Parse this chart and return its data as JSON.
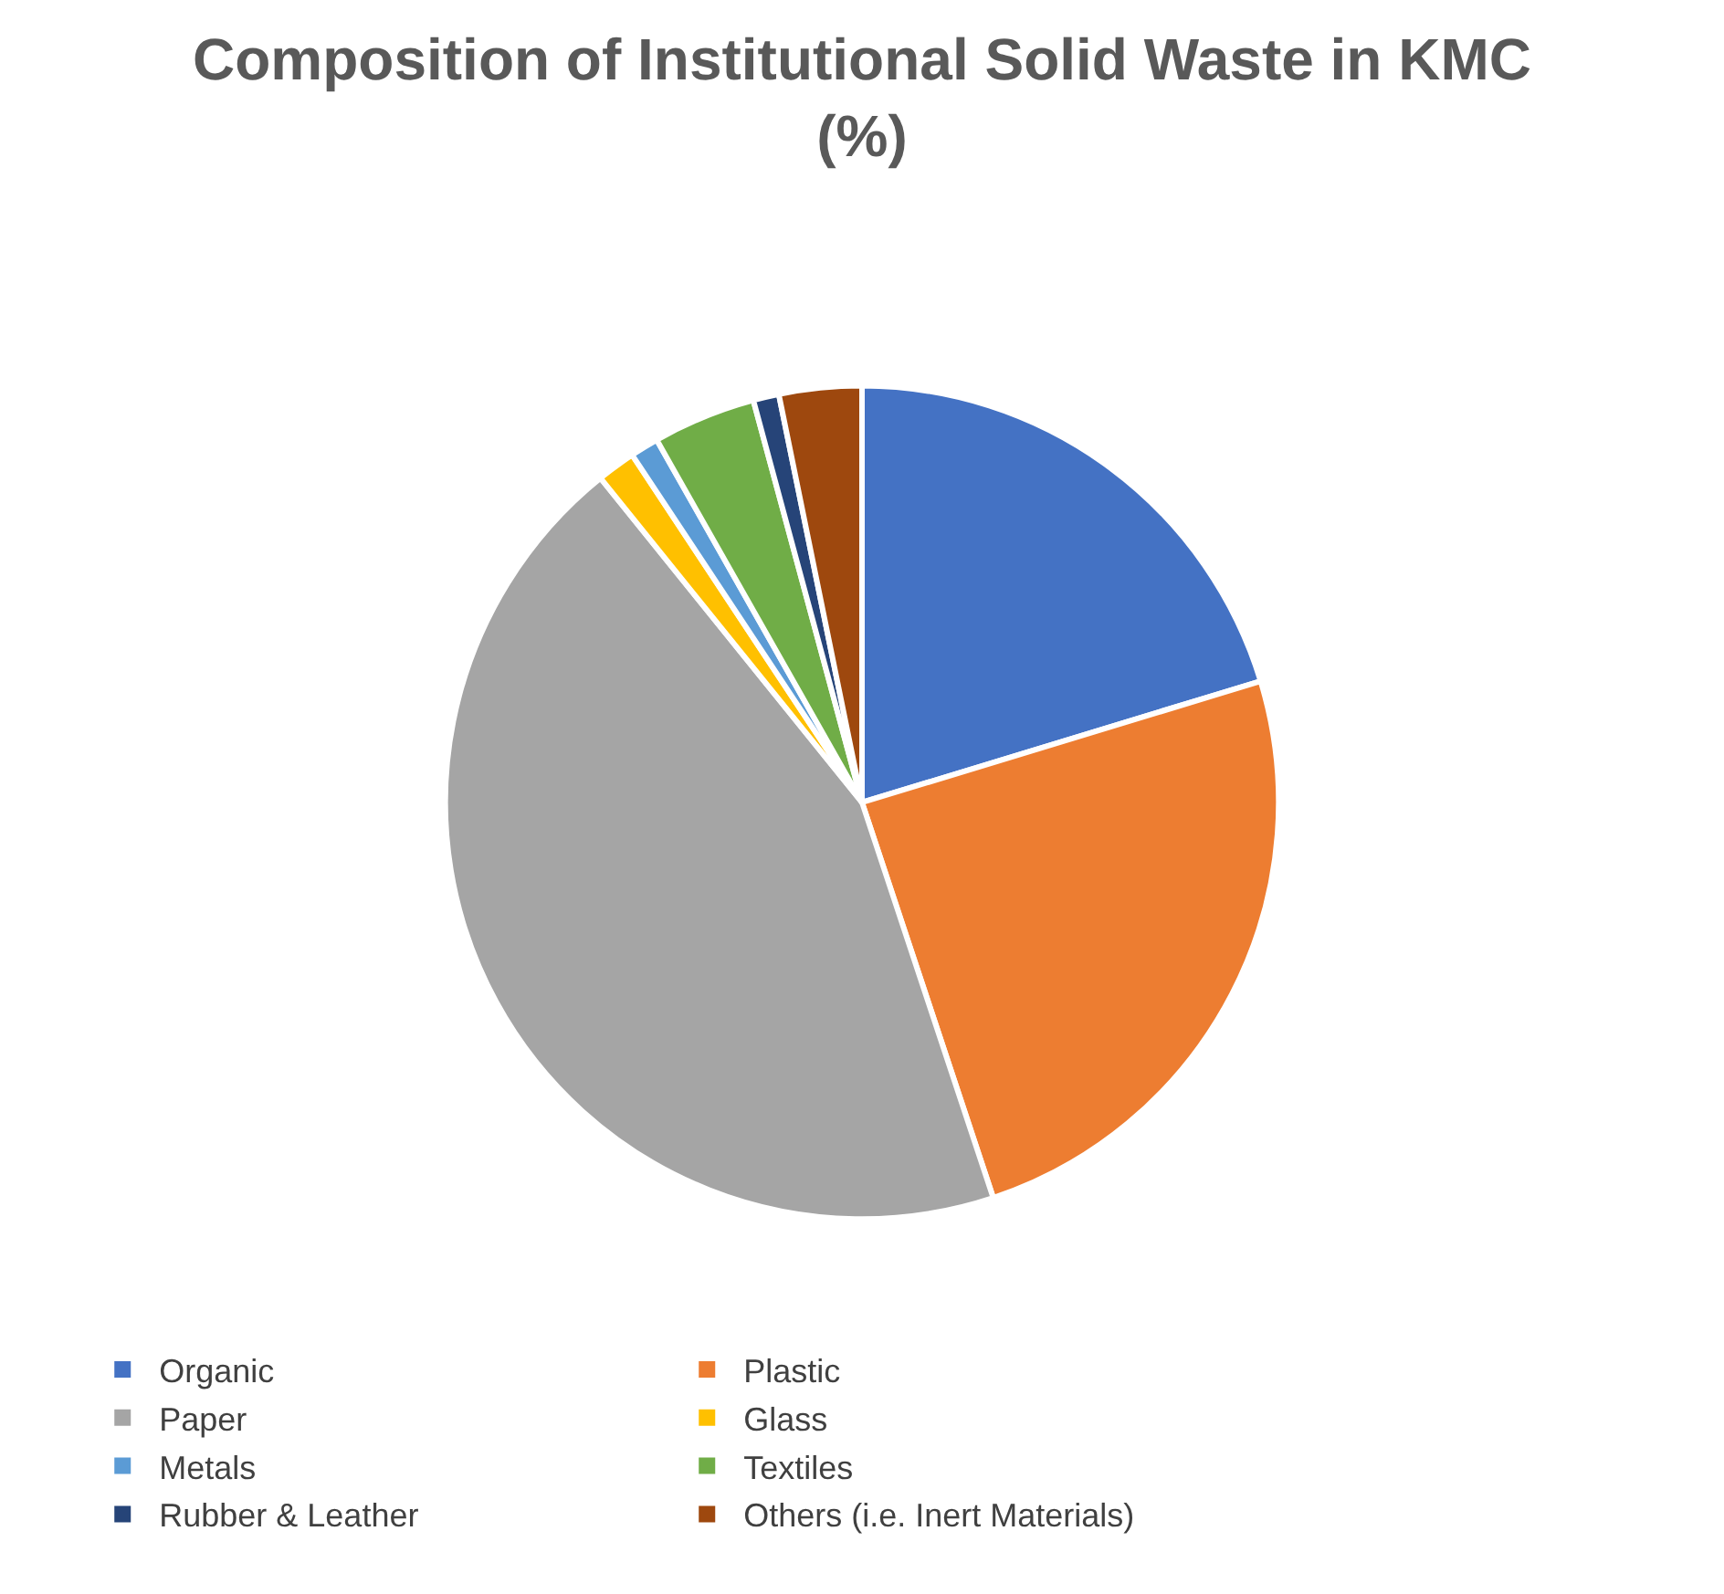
{
  "chart_data": {
    "type": "pie",
    "title": "Composition of Institutional Solid Waste in KMC\n(%)",
    "categories": [
      "Organic",
      "Plastic",
      "Paper",
      "Glass",
      "Metals",
      "Textiles",
      "Rubber & Leather",
      "Others (i.e. Inert Materials)"
    ],
    "values": [
      20.3,
      24.6,
      44.3,
      1.5,
      1.1,
      4.0,
      1.0,
      3.2
    ],
    "colors": [
      "#4472c4",
      "#ed7d31",
      "#a5a5a5",
      "#ffc000",
      "#5b9bd5",
      "#70ad47",
      "#264478",
      "#9e480e"
    ],
    "legend": "bottom"
  }
}
